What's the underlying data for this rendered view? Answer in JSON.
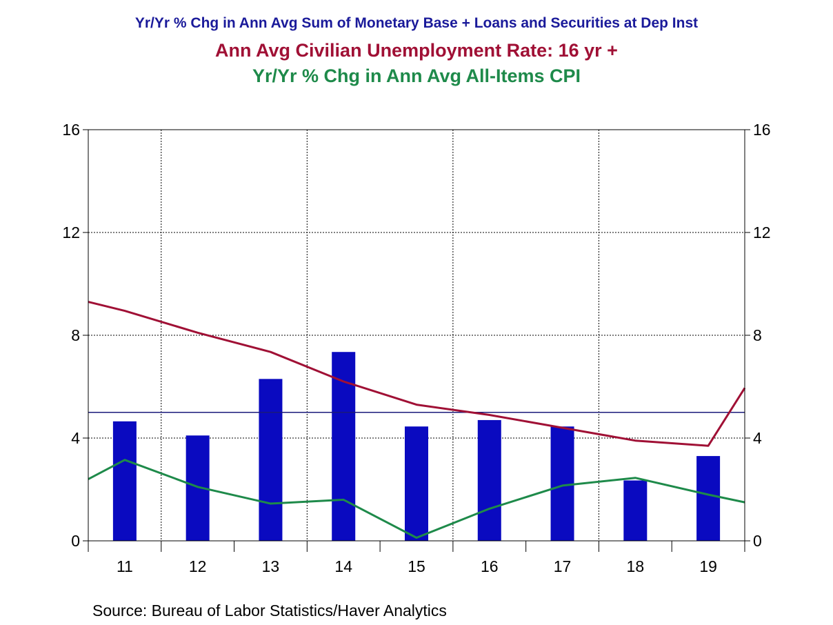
{
  "chart_data": {
    "type": "bar+line",
    "titles": [
      {
        "text": "Yr/Yr % Chg in Ann Avg Sum of Monetary Base + Loans and Securities at Dep Inst",
        "color": "#1a1a9a"
      },
      {
        "text": "Ann Avg Civilian Unemployment Rate: 16 yr +",
        "color": "#a01035"
      },
      {
        "text": "Yr/Yr % Chg in Ann Avg All-Items CPI",
        "color": "#1e8a4a"
      }
    ],
    "categories": [
      "11",
      "12",
      "13",
      "14",
      "15",
      "16",
      "17",
      "18",
      "19"
    ],
    "ylim": [
      0,
      16
    ],
    "yticks": [
      0,
      4,
      8,
      12,
      16
    ],
    "y2ticks": [
      0,
      4,
      8,
      12,
      16
    ],
    "grid": true,
    "reference_line": {
      "value": 5,
      "color": "#1a1a7a"
    },
    "series": [
      {
        "type": "bar",
        "color": "#0a0ac0",
        "values": [
          4.65,
          4.1,
          6.3,
          7.35,
          4.45,
          4.7,
          4.45,
          2.35,
          3.3
        ]
      },
      {
        "type": "line",
        "color": "#a01035",
        "x": [
          10.5,
          11,
          12,
          13,
          14,
          15,
          16,
          17,
          18,
          19,
          19.5
        ],
        "values": [
          9.3,
          8.95,
          8.1,
          7.35,
          6.2,
          5.3,
          4.9,
          4.4,
          3.9,
          3.7,
          5.95
        ]
      },
      {
        "type": "line",
        "color": "#1e8a4a",
        "x": [
          10.5,
          11,
          12,
          13,
          14,
          15,
          16,
          17,
          18,
          19,
          19.5
        ],
        "values": [
          2.4,
          3.15,
          2.1,
          1.45,
          1.6,
          0.12,
          1.25,
          2.15,
          2.45,
          1.8,
          1.5
        ]
      }
    ]
  },
  "source": "Source:  Bureau of Labor Statistics/Haver Analytics"
}
